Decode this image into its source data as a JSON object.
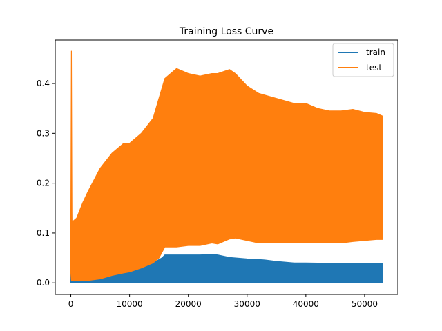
{
  "chart_data": {
    "type": "line",
    "title": "Training Loss Curve",
    "xlabel": "",
    "ylabel": "",
    "xlim": [
      -2650,
      55650
    ],
    "ylim": [
      -0.0232,
      0.4872
    ],
    "xticks": [
      0,
      10000,
      20000,
      30000,
      40000,
      50000
    ],
    "xtick_labels": [
      "0",
      "10000",
      "20000",
      "30000",
      "40000",
      "50000"
    ],
    "yticks": [
      0.0,
      0.1,
      0.2,
      0.3,
      0.4
    ],
    "ytick_labels": [
      "0.0",
      "0.1",
      "0.2",
      "0.3",
      "0.4"
    ],
    "grid": false,
    "legend_position": "top-right",
    "series": [
      {
        "name": "train",
        "color": "#1f77b4",
        "x": [
          0,
          100,
          300,
          1000,
          3000,
          5000,
          7000,
          9000,
          10000,
          12000,
          14000,
          15500,
          16000,
          18000,
          20000,
          22000,
          24000,
          25000,
          27000,
          30000,
          33000,
          35000,
          38000,
          40000,
          45000,
          48000,
          50000,
          52000,
          53000
        ],
        "upper": [
          0.01,
          0.2,
          0.006,
          0.004,
          0.004,
          0.008,
          0.015,
          0.02,
          0.022,
          0.03,
          0.04,
          0.05,
          0.056,
          0.056,
          0.056,
          0.056,
          0.057,
          0.056,
          0.051,
          0.048,
          0.046,
          0.043,
          0.04,
          0.04,
          0.039,
          0.039,
          0.039,
          0.039,
          0.039
        ],
        "lower": [
          0.0,
          0.0,
          0.0,
          0.0,
          0.0,
          0.0,
          0.0,
          0.0,
          0.0,
          0.0,
          0.0,
          0.0,
          0.0,
          0.0,
          0.0,
          0.0,
          0.0,
          0.0,
          0.0,
          0.0,
          0.0,
          0.0,
          0.0,
          0.0,
          0.0,
          0.0,
          0.0,
          0.0,
          0.0
        ]
      },
      {
        "name": "test",
        "color": "#ff7f0e",
        "x": [
          0,
          100,
          200,
          300,
          1000,
          2000,
          3000,
          5000,
          7000,
          9000,
          10000,
          12000,
          14000,
          15000,
          16000,
          18000,
          20000,
          22000,
          24000,
          25000,
          27000,
          28000,
          30000,
          32000,
          35000,
          38000,
          40000,
          42000,
          44000,
          46000,
          48000,
          50000,
          52000,
          53000
        ],
        "upper": [
          0.12,
          0.465,
          0.12,
          0.123,
          0.13,
          0.16,
          0.185,
          0.23,
          0.26,
          0.28,
          0.28,
          0.3,
          0.33,
          0.37,
          0.41,
          0.43,
          0.42,
          0.415,
          0.42,
          0.42,
          0.428,
          0.42,
          0.395,
          0.38,
          0.37,
          0.36,
          0.36,
          0.35,
          0.345,
          0.345,
          0.348,
          0.342,
          0.34,
          0.335
        ],
        "lower": [
          0.02,
          0.005,
          0.005,
          0.004,
          0.004,
          0.005,
          0.005,
          0.008,
          0.015,
          0.02,
          0.022,
          0.03,
          0.04,
          0.05,
          0.072,
          0.072,
          0.075,
          0.075,
          0.08,
          0.078,
          0.088,
          0.09,
          0.085,
          0.08,
          0.08,
          0.08,
          0.08,
          0.08,
          0.08,
          0.08,
          0.083,
          0.085,
          0.087,
          0.087
        ]
      }
    ]
  }
}
